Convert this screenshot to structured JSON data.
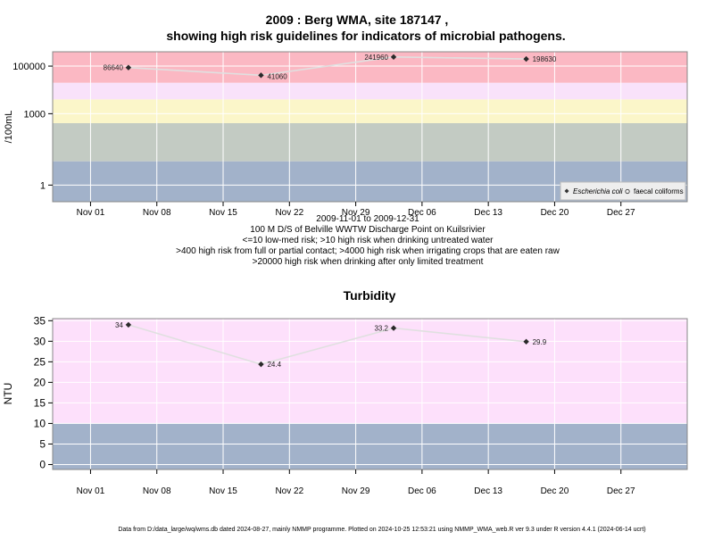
{
  "chart_data": [
    {
      "type": "scatter",
      "title_line1": "2009 : Berg WMA, site 187147 ,",
      "title_line2": "showing high risk guidelines for indicators of microbial pathogens.",
      "ylabel": "/100mL",
      "yscale": "log",
      "ylim": [
        0.2,
        400000
      ],
      "yticks": [
        {
          "value": 1,
          "label": "1"
        },
        {
          "value": 1000,
          "label": "1000"
        },
        {
          "value": 100000,
          "label": "100000"
        }
      ],
      "xlim": [
        "2009-10-28",
        "2010-01-03"
      ],
      "xticks": [
        {
          "date": "2009-11-01",
          "label": "Nov 01"
        },
        {
          "date": "2009-11-08",
          "label": "Nov 08"
        },
        {
          "date": "2009-11-15",
          "label": "Nov 15"
        },
        {
          "date": "2009-11-22",
          "label": "Nov 22"
        },
        {
          "date": "2009-11-29",
          "label": "Nov 29"
        },
        {
          "date": "2009-12-06",
          "label": "Dec 06"
        },
        {
          "date": "2009-12-13",
          "label": "Dec 13"
        },
        {
          "date": "2009-12-20",
          "label": "Dec 20"
        },
        {
          "date": "2009-12-27",
          "label": "Dec 27"
        }
      ],
      "bands": [
        {
          "from": 0.2,
          "to": 10,
          "color": "#a2b2ca"
        },
        {
          "from": 10,
          "to": 400,
          "color": "#c3cbc3"
        },
        {
          "from": 400,
          "to": 4000,
          "color": "#fbf6c9"
        },
        {
          "from": 4000,
          "to": 20000,
          "color": "#f9e2fa"
        },
        {
          "from": 20000,
          "to": 400000,
          "color": "#fbb8c3"
        }
      ],
      "series": [
        {
          "name": "Escherichia coli",
          "marker": "diamond",
          "points": [
            {
              "x": "2009-11-05",
              "y": 86640,
              "label": "86640"
            },
            {
              "x": "2009-11-19",
              "y": 41060,
              "label": "41060"
            },
            {
              "x": "2009-12-03",
              "y": 241960,
              "label": "241960"
            },
            {
              "x": "2009-12-17",
              "y": 198630,
              "label": "198630"
            }
          ]
        }
      ],
      "legend": {
        "position": "bottom-right",
        "entries": [
          {
            "label": "Escherichia coli",
            "marker": "diamond"
          },
          {
            "label": "faecal coliforms",
            "marker": "circle"
          }
        ]
      },
      "caption": [
        "2009-11-01 to 2009-12-31",
        "100 M D/S of Belville WWTW Discharge Point on Kuilsrivier",
        "<=10 low-med risk; >10 high risk when drinking untreated water",
        ">400 high risk from full or partial contact; >4000 high risk when irrigating crops that are eaten raw",
        ">20000 high risk when drinking after only limited treatment"
      ]
    },
    {
      "type": "scatter",
      "title": "Turbidity",
      "ylabel": "NTU",
      "ylim": [
        -1.2,
        35.5
      ],
      "yticks": [
        {
          "value": 0,
          "label": "0"
        },
        {
          "value": 5,
          "label": "5"
        },
        {
          "value": 10,
          "label": "10"
        },
        {
          "value": 15,
          "label": "15"
        },
        {
          "value": 20,
          "label": "20"
        },
        {
          "value": 25,
          "label": "25"
        },
        {
          "value": 30,
          "label": "30"
        },
        {
          "value": 35,
          "label": "35"
        }
      ],
      "xlim": [
        "2009-10-28",
        "2010-01-03"
      ],
      "xticks": [
        {
          "date": "2009-11-01",
          "label": "Nov 01"
        },
        {
          "date": "2009-11-08",
          "label": "Nov 08"
        },
        {
          "date": "2009-11-15",
          "label": "Nov 15"
        },
        {
          "date": "2009-11-22",
          "label": "Nov 22"
        },
        {
          "date": "2009-11-29",
          "label": "Nov 29"
        },
        {
          "date": "2009-12-06",
          "label": "Dec 06"
        },
        {
          "date": "2009-12-13",
          "label": "Dec 13"
        },
        {
          "date": "2009-12-20",
          "label": "Dec 20"
        },
        {
          "date": "2009-12-27",
          "label": "Dec 27"
        }
      ],
      "bands": [
        {
          "from": -1.2,
          "to": 10,
          "color": "#a2b2ca"
        },
        {
          "from": 10,
          "to": 35.5,
          "color": "#fde0fb"
        }
      ],
      "series": [
        {
          "marker": "diamond",
          "points": [
            {
              "x": "2009-11-05",
              "y": 34,
              "label": "34"
            },
            {
              "x": "2009-11-19",
              "y": 24.4,
              "label": "24.4"
            },
            {
              "x": "2009-12-03",
              "y": 33.2,
              "label": "33.2"
            },
            {
              "x": "2009-12-17",
              "y": 29.9,
              "label": "29.9"
            }
          ]
        }
      ]
    }
  ],
  "footer": "Data from D:/data_large/wq/wms.db dated 2024-08-27, mainly NMMP programme. Plotted on 2024-10-25 12:53:21 using NMMP_WMA_web.R ver 9.3 under R version 4.4.1 (2024-06-14 ucrt)"
}
